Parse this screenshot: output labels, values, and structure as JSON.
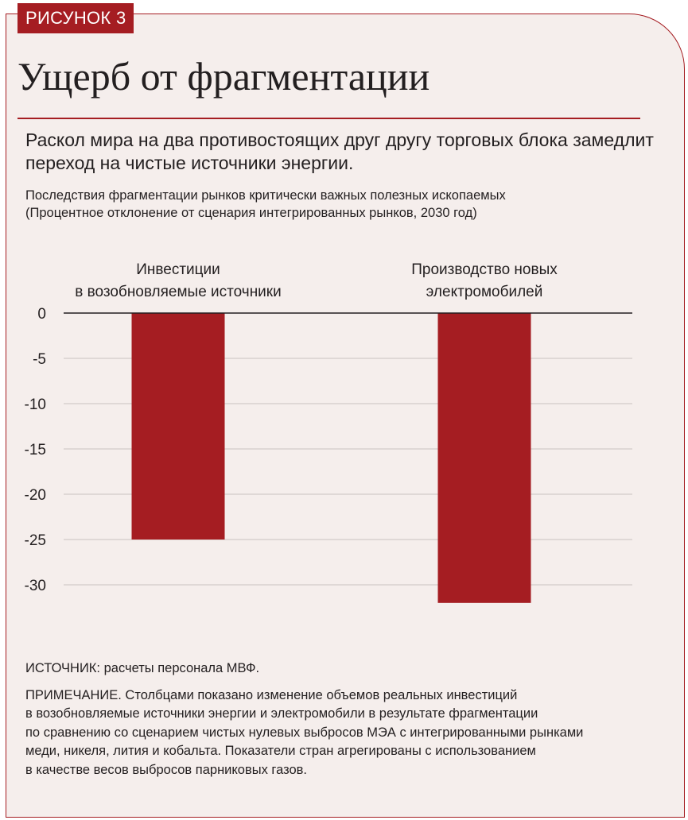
{
  "figure_label": "РИСУНОК 3",
  "title": "Ущерб от фрагментации",
  "subtitle": "Раскол мира на два противостоящих друг другу торговых блока замедлит переход на чистые источники энергии.",
  "caption": {
    "line1": "Последствия фрагментации рынков критически важных полезных ископаемых",
    "line2": "(Процентное отклонение от сценария интегрированных рынков, 2030 год)"
  },
  "colors": {
    "accent": "#a51d22",
    "bar": "#a51d22",
    "panel_bg": "#f5eeec",
    "gridline": "#c9c3c1",
    "text": "#231f20"
  },
  "chart_data": {
    "type": "bar",
    "title": "Последствия фрагментации рынков критически важных полезных ископаемых",
    "ylabel": "Процентное отклонение от сценария интегрированных рынков, 2030 год",
    "xlabel": "",
    "categories": [
      [
        "Инвестиции",
        "в возобновляемые источники"
      ],
      [
        "Производство новых",
        "электромобилей"
      ]
    ],
    "values": [
      -25,
      -32
    ],
    "ylim": [
      -32,
      0
    ],
    "yticks": [
      0,
      -5,
      -10,
      -15,
      -20,
      -25,
      -30
    ],
    "grid": true
  },
  "footer": {
    "source": "ИСТОЧНИК: расчеты персонала МВФ.",
    "note_lines": [
      "ПРИМЕЧАНИЕ. Столбцами показано изменение объемов реальных инвестиций",
      "в возобновляемые источники энергии и электромобили в результате фрагментации",
      "по сравнению со сценарием чистых нулевых выбросов МЭА с интегрированными рынками",
      "меди, никеля, лития и кобальта. Показатели стран агрегированы с использованием",
      "в качестве весов выбросов парниковых газов."
    ]
  }
}
